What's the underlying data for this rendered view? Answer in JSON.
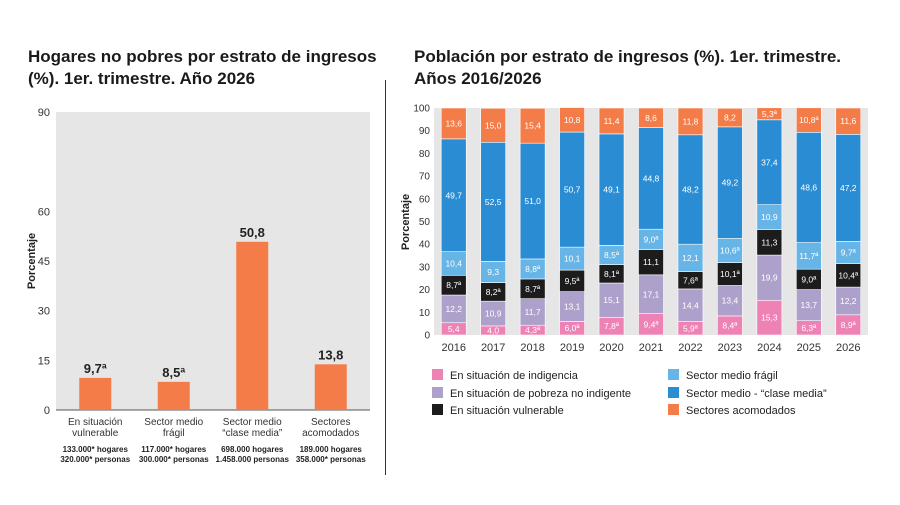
{
  "left_chart": {
    "title": "Hogares no pobres por estrato de ingresos (%). 1er. trimestre. Año 2026",
    "ylabel": "Porcentaje",
    "ylim": [
      0,
      90
    ],
    "yticks": [
      "0",
      "15",
      "30",
      "45",
      "60",
      "90"
    ],
    "bar_color": "#f47c48",
    "plot_bg": "#e6e6e6",
    "categories": [
      {
        "name": [
          "En situación",
          "vulnerable"
        ],
        "value": 9.7,
        "label": "9,7ª",
        "notes": [
          "133.000* hogares",
          "320.000* personas"
        ]
      },
      {
        "name": [
          "Sector medio",
          "frágil"
        ],
        "value": 8.5,
        "label": "8,5ª",
        "notes": [
          "117.000* hogares",
          "300.000* personas"
        ]
      },
      {
        "name": [
          "Sector medio",
          "“clase media”"
        ],
        "value": 50.8,
        "label": "50,8",
        "notes": [
          "698.000 hogares",
          "1.458.000 personas"
        ]
      },
      {
        "name": [
          "Sectores",
          "acomodados"
        ],
        "value": 13.8,
        "label": "13,8",
        "notes": [
          "189.000 hogares",
          "358.000* personas"
        ]
      }
    ]
  },
  "chart_data": {
    "type": "bar",
    "stacked": true,
    "title": "Población por estrato de ingresos (%). 1er. trimestre. Años 2016/2026",
    "ylabel": "Porcentaje",
    "ylim": [
      0,
      100
    ],
    "yticks": [
      "0",
      "10",
      "20",
      "30",
      "40",
      "50",
      "60",
      "70",
      "80",
      "90",
      "100"
    ],
    "categories": [
      "2016",
      "2017",
      "2018",
      "2019",
      "2020",
      "2021",
      "2022",
      "2023",
      "2024",
      "2025",
      "2026"
    ],
    "plot_bg": "#e6e6e6",
    "series": [
      {
        "name": "En situación de indigencia",
        "color": "#ee82b4",
        "values": [
          5.4,
          4.0,
          4.3,
          6.0,
          7.8,
          9.4,
          5.9,
          8.4,
          15.3,
          6.3,
          8.9
        ],
        "labels": [
          "5,4",
          "4,0",
          "4,3ª",
          "6,0ª",
          "7,8ª",
          "9,4ª",
          "5,9ª",
          "8,4ª",
          "15,3",
          "6,3ª",
          "8,9ª"
        ]
      },
      {
        "name": "En situación de pobreza no indigente",
        "color": "#ada1cc",
        "values": [
          12.2,
          10.9,
          11.7,
          13.1,
          15.1,
          17.1,
          14.4,
          13.4,
          19.9,
          13.7,
          12.2
        ],
        "labels": [
          "12,2",
          "10,9",
          "11,7",
          "13,1",
          "15,1",
          "17,1",
          "14,4",
          "13,4",
          "19,9",
          "13,7",
          "12,2"
        ]
      },
      {
        "name": "En situación vulnerable",
        "color": "#1c1c1c",
        "values": [
          8.7,
          8.2,
          8.7,
          9.5,
          8.1,
          11.1,
          7.6,
          10.1,
          11.3,
          9.0,
          10.4
        ],
        "labels": [
          "8,7ª",
          "8,2ª",
          "8,7ª",
          "9,5ª",
          "8,1ª",
          "11,1",
          "7,6ª",
          "10,1ª",
          "11,3",
          "9,0ª",
          "10,4ª"
        ]
      },
      {
        "name": "Sector medio frágil",
        "color": "#67b4e6",
        "values": [
          10.4,
          9.3,
          8.8,
          10.1,
          8.5,
          9.0,
          12.1,
          10.6,
          10.9,
          11.7,
          9.7
        ],
        "labels": [
          "10,4",
          "9,3",
          "8,8ª",
          "10,1",
          "8,5ª",
          "9,0ª",
          "12,1",
          "10,6ª",
          "10,9",
          "11,7ª",
          "9,7ª"
        ]
      },
      {
        "name": "Sector medio - “clase media”",
        "color": "#2a8dd4",
        "values": [
          49.7,
          52.5,
          51.0,
          50.7,
          49.1,
          44.8,
          48.2,
          49.2,
          37.4,
          48.6,
          47.2
        ],
        "labels": [
          "49,7",
          "52,5",
          "51,0",
          "50,7",
          "49,1",
          "44,8",
          "48,2",
          "49,2",
          "37,4",
          "48,6",
          "47,2"
        ]
      },
      {
        "name": "Sectores acomodados",
        "color": "#f47c48",
        "values": [
          13.6,
          15.0,
          15.4,
          10.8,
          11.4,
          8.6,
          11.8,
          8.2,
          5.3,
          10.8,
          11.6
        ],
        "labels": [
          "13,6",
          "15,0",
          "15,4",
          "10,8",
          "11,4",
          "8,6",
          "11,8",
          "8,2",
          "5,3ª",
          "10,8ª",
          "11,6"
        ]
      }
    ]
  }
}
